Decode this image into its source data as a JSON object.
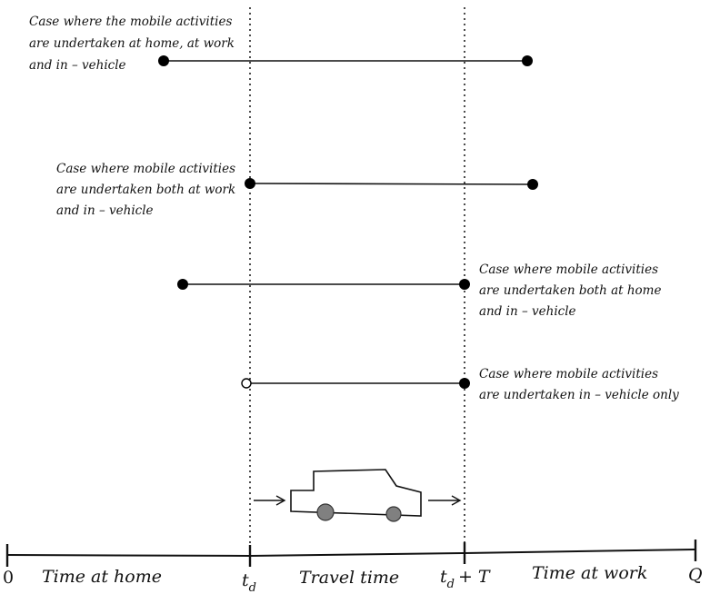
{
  "cases": [
    {
      "caption_lines": [
        "Case where the mobile activities",
        "are undertaken at home,  at work",
        "and in – vehicle"
      ],
      "start_marker": "filled",
      "end_marker": "filled"
    },
    {
      "caption_lines": [
        "Case where mobile activities",
        "are undertaken both at work",
        "and in – vehicle"
      ],
      "start_marker": "filled",
      "end_marker": "filled"
    },
    {
      "caption_lines": [
        "Case where mobile activities",
        "are undertaken both at home",
        "and in – vehicle"
      ],
      "start_marker": "filled",
      "end_marker": "filled"
    },
    {
      "caption_lines": [
        "Case where mobile activities",
        "are undertaken in – vehicle only"
      ],
      "start_marker": "open",
      "end_marker": "filled"
    }
  ],
  "timeline": {
    "start_label": "0",
    "end_label": "Q",
    "td_base": "t",
    "td_sub": "d",
    "td_plus": "+ T",
    "segments": [
      "Time at home",
      "Travel time",
      "Time at work"
    ]
  },
  "colors": {
    "line": "#111111",
    "marker": "#000000",
    "wheel": "#808080"
  },
  "icons": {
    "vehicle": "car-icon"
  }
}
